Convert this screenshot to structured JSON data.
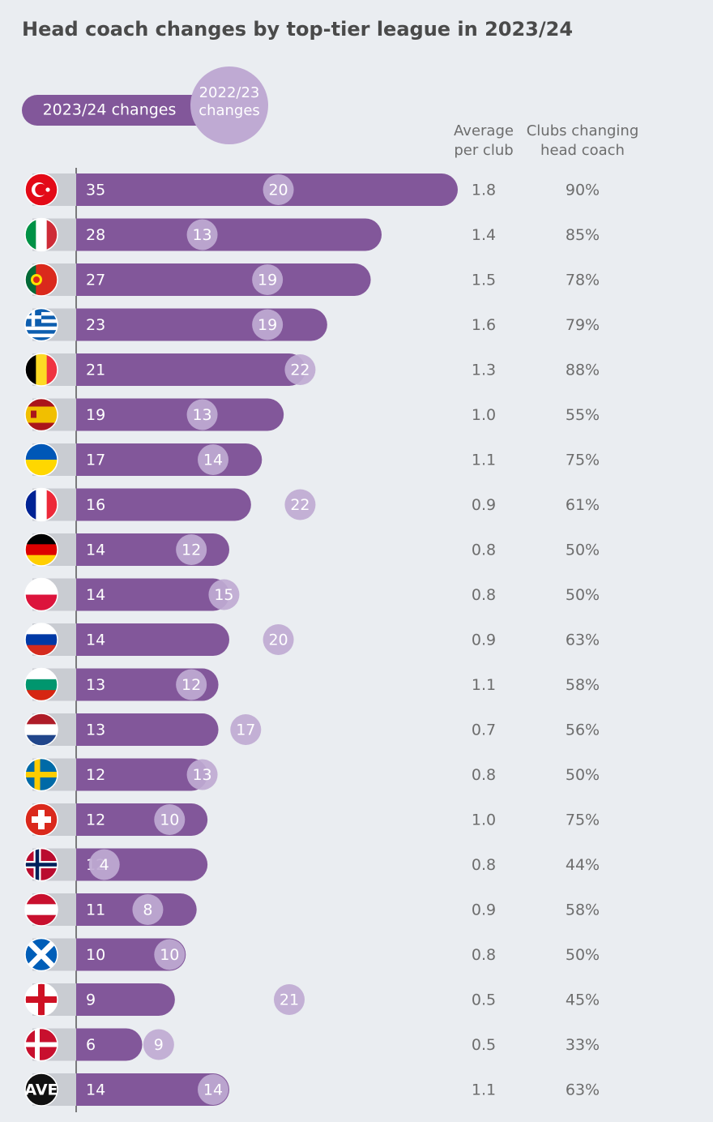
{
  "chart_data": {
    "type": "bar",
    "title": "Head coach changes by top-tier league in 2023/24",
    "categories": [
      null,
      null,
      null,
      null,
      null,
      null,
      null,
      null,
      null,
      null,
      null,
      null,
      null,
      null,
      null,
      null,
      null,
      null,
      null,
      null,
      "AVE"
    ],
    "series": [
      {
        "name": "2023/24 changes",
        "color": "#82579a",
        "values": [
          35,
          28,
          27,
          23,
          21,
          19,
          17,
          16,
          14,
          14,
          14,
          13,
          13,
          12,
          12,
          12,
          11,
          10,
          9,
          6,
          14
        ]
      },
      {
        "name": "2022/23 changes",
        "color": "#bfaad3",
        "values": [
          20,
          13,
          19,
          19,
          22,
          13,
          14,
          22,
          12,
          15,
          20,
          12,
          17,
          13,
          10,
          4,
          8,
          10,
          21,
          9,
          14
        ]
      }
    ],
    "columns": [
      {
        "name": "Average per club",
        "values": [
          1.8,
          1.4,
          1.5,
          1.6,
          1.3,
          1.0,
          1.1,
          0.9,
          0.8,
          0.8,
          0.9,
          1.1,
          0.7,
          0.8,
          1.0,
          0.8,
          0.9,
          0.8,
          0.5,
          0.5,
          1.1
        ],
        "value_labels": [
          "1.8",
          "1.4",
          "1.5",
          "1.6",
          "1.3",
          "1.0",
          "1.1",
          "0.9",
          "0.8",
          "0.8",
          "0.9",
          "1.1",
          "0.7",
          "0.8",
          "1.0",
          "0.8",
          "0.9",
          "0.8",
          "0.5",
          "0.5",
          "1.1"
        ]
      },
      {
        "name": "Clubs changing head coach",
        "values": [
          90,
          85,
          78,
          79,
          88,
          55,
          75,
          61,
          50,
          50,
          63,
          58,
          56,
          50,
          75,
          44,
          58,
          50,
          45,
          33,
          63
        ],
        "value_labels": [
          "90%",
          "85%",
          "78%",
          "79%",
          "88%",
          "55%",
          "75%",
          "61%",
          "50%",
          "50%",
          "63%",
          "58%",
          "56%",
          "50%",
          "75%",
          "44%",
          "58%",
          "50%",
          "45%",
          "33%",
          "63%"
        ]
      }
    ]
  }
}
